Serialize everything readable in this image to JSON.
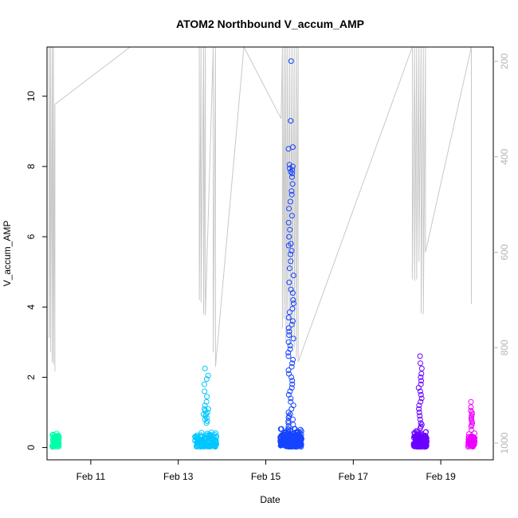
{
  "chart_data": {
    "type": "scatter",
    "title": "ATOM2 Northbound V_accum_AMP",
    "xlabel": "Date",
    "ylabel": "V_accum_AMP",
    "x_ticks": [
      "Feb 11",
      "Feb 13",
      "Feb 15",
      "Feb 17",
      "Feb 19"
    ],
    "x_tick_values": [
      11,
      13,
      15,
      17,
      19
    ],
    "xlim": [
      10.0,
      20.2
    ],
    "y_ticks": [
      0,
      2,
      4,
      6,
      8,
      10
    ],
    "ylim": [
      -0.35,
      11.4
    ],
    "y2_ticks": [
      200,
      400,
      600,
      800,
      1000
    ],
    "y2lim": [
      1035,
      170
    ],
    "y2_reversed": true,
    "grid": false,
    "legend": "none",
    "line_color": "#c8c8c8",
    "series": [
      {
        "color": "#00ffaa",
        "clusters": [
          {
            "x_start": 10.12,
            "x_end": 10.28,
            "n": 70,
            "max": 0.45,
            "spread": 0.18,
            "outliers": []
          }
        ]
      },
      {
        "color": "#00c6ff",
        "clusters": [
          {
            "x_start": 13.38,
            "x_end": 13.88,
            "n": 130,
            "max": 0.45,
            "spread": 0.22,
            "outliers": [
              0.75,
              0.8,
              0.85,
              0.9,
              0.95,
              1.0,
              1.05,
              1.1,
              1.2,
              1.3,
              1.45,
              1.6,
              1.8,
              1.95,
              2.25,
              2.05,
              1.1,
              0.95,
              0.7
            ]
          }
        ]
      },
      {
        "color": "#1644ff",
        "clusters": [
          {
            "x_start": 15.33,
            "x_end": 15.82,
            "n": 220,
            "max": 0.55,
            "spread": 0.25,
            "outliers": [
              11.0,
              9.3,
              8.55,
              8.5,
              8.05,
              8.0,
              7.95,
              7.9,
              7.85,
              7.8,
              7.7,
              7.5,
              7.3,
              7.2,
              7.0,
              6.8,
              6.6,
              6.4,
              6.2,
              6.0,
              5.8,
              5.75,
              5.6,
              5.5,
              5.3,
              5.1,
              4.9,
              4.7,
              4.5,
              4.4,
              4.2,
              4.1,
              3.95,
              3.85,
              3.7,
              3.6,
              3.5,
              3.4,
              3.3,
              3.2,
              3.1,
              3.0,
              2.9,
              2.8,
              2.7,
              2.6,
              2.5,
              2.4,
              2.3,
              2.2,
              2.1,
              2.0,
              1.9,
              1.8,
              1.7,
              1.6,
              1.5,
              1.4,
              1.3,
              1.2,
              1.1,
              1.0,
              0.95,
              0.9,
              0.85,
              0.8,
              0.75,
              0.7,
              0.65,
              0.6
            ]
          }
        ]
      },
      {
        "color": "#6a00ff",
        "clusters": [
          {
            "x_start": 18.38,
            "x_end": 18.68,
            "n": 140,
            "max": 0.5,
            "spread": 0.22,
            "outliers": [
              2.6,
              2.4,
              2.25,
              2.1,
              2.0,
              1.9,
              1.8,
              1.7,
              1.6,
              1.5,
              1.4,
              1.3,
              1.2,
              1.1,
              1.0,
              0.9,
              0.8,
              0.7,
              0.65,
              0.6,
              0.55
            ]
          }
        ]
      },
      {
        "color": "#ee00ff",
        "clusters": [
          {
            "x_start": 19.62,
            "x_end": 19.78,
            "n": 60,
            "max": 0.4,
            "spread": 0.2,
            "outliers": [
              1.3,
              1.15,
              1.05,
              1.0,
              0.95,
              0.9,
              0.85,
              0.8,
              0.75,
              0.7,
              0.65,
              0.6,
              0.5
            ]
          }
        ]
      }
    ],
    "depth_line": {
      "axis": "right",
      "points": [
        [
          10.05,
          150
        ],
        [
          10.05,
          780
        ],
        [
          10.08,
          150
        ],
        [
          10.08,
          810
        ],
        [
          10.12,
          150
        ],
        [
          10.12,
          830
        ],
        [
          10.15,
          150
        ],
        [
          10.15,
          835
        ],
        [
          10.18,
          290
        ],
        [
          10.18,
          850
        ],
        [
          10.18,
          290
        ],
        [
          11.9,
          150
        ],
        [
          13.48,
          150
        ],
        [
          13.48,
          700
        ],
        [
          13.52,
          150
        ],
        [
          13.52,
          705
        ],
        [
          13.58,
          150
        ],
        [
          13.58,
          730
        ],
        [
          13.62,
          150
        ],
        [
          13.62,
          733
        ],
        [
          13.8,
          150
        ],
        [
          13.8,
          810
        ],
        [
          13.85,
          150
        ],
        [
          13.85,
          840
        ],
        [
          14.5,
          150
        ],
        [
          15.35,
          320
        ],
        [
          15.38,
          150
        ],
        [
          15.38,
          760
        ],
        [
          15.42,
          150
        ],
        [
          15.42,
          740
        ],
        [
          15.46,
          150
        ],
        [
          15.46,
          790
        ],
        [
          15.5,
          150
        ],
        [
          15.5,
          760
        ],
        [
          15.55,
          150
        ],
        [
          15.55,
          800
        ],
        [
          15.6,
          150
        ],
        [
          15.6,
          780
        ],
        [
          15.65,
          150
        ],
        [
          15.65,
          800
        ],
        [
          15.7,
          150
        ],
        [
          15.7,
          820
        ],
        [
          15.74,
          150
        ],
        [
          15.74,
          830
        ],
        [
          18.35,
          150
        ],
        [
          18.35,
          657
        ],
        [
          18.4,
          150
        ],
        [
          18.4,
          660
        ],
        [
          18.45,
          150
        ],
        [
          18.45,
          657
        ],
        [
          18.5,
          150
        ],
        [
          18.5,
          620
        ],
        [
          18.55,
          150
        ],
        [
          18.55,
          728
        ],
        [
          18.6,
          150
        ],
        [
          18.6,
          730
        ],
        [
          18.65,
          150
        ],
        [
          18.65,
          600
        ],
        [
          19.7,
          150
        ],
        [
          19.7,
          708
        ]
      ]
    }
  }
}
